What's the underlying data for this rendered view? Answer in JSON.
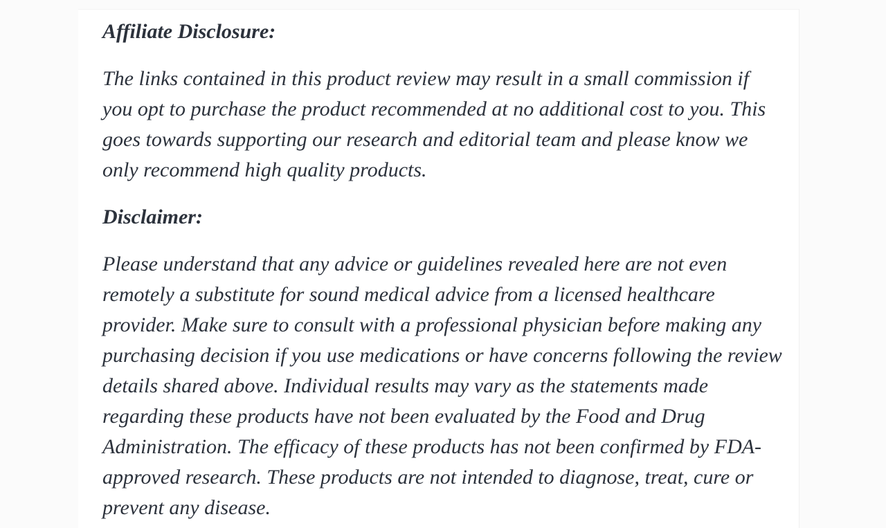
{
  "page": {
    "background_color": "#fbfbfb",
    "card_background_color": "#ffffff",
    "text_color": "#2c323c"
  },
  "article": {
    "sections": [
      {
        "heading": "Affiliate Disclosure:",
        "lines": [
          "The links contained in this product review may result in a small commission if",
          "you opt to purchase the product recommended at no additional cost to you. This",
          "goes towards supporting our research and editorial team and please know we",
          "only recommend high quality products."
        ]
      },
      {
        "heading": "Disclaimer:",
        "lines": [
          "Please understand that any advice or guidelines revealed here are not even",
          "remotely a substitute for sound medical advice from a licensed healthcare",
          "provider. Make sure to consult with a professional physician before making any",
          "purchasing decision if you use medications or have concerns following the review",
          "details shared above. Individual results may vary as the statements made",
          "regarding these products have not been evaluated by the Food and Drug",
          "Administration. The efficacy of these products has not been confirmed by FDA-",
          "approved research. These products are not intended to diagnose, treat, cure or",
          "prevent any disease."
        ]
      }
    ]
  }
}
